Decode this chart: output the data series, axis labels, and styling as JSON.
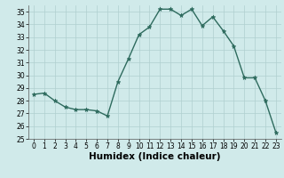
{
  "x": [
    0,
    1,
    2,
    3,
    4,
    5,
    6,
    7,
    8,
    9,
    10,
    11,
    12,
    13,
    14,
    15,
    16,
    17,
    18,
    19,
    20,
    21,
    22,
    23
  ],
  "y": [
    28.5,
    28.6,
    28.0,
    27.5,
    27.3,
    27.3,
    27.2,
    26.8,
    29.5,
    31.3,
    33.2,
    33.8,
    35.2,
    35.2,
    34.7,
    35.2,
    33.9,
    34.6,
    33.5,
    32.3,
    29.8,
    29.8,
    28.0,
    25.5
  ],
  "line_color": "#2e6b5e",
  "marker": "*",
  "marker_size": 3.5,
  "bg_color": "#d0eaea",
  "grid_color": "#b0cfcf",
  "xlabel": "Humidex (Indice chaleur)",
  "ylim": [
    25,
    35.5
  ],
  "xlim": [
    -0.5,
    23.5
  ],
  "yticks": [
    25,
    26,
    27,
    28,
    29,
    30,
    31,
    32,
    33,
    34,
    35
  ],
  "xticks": [
    0,
    1,
    2,
    3,
    4,
    5,
    6,
    7,
    8,
    9,
    10,
    11,
    12,
    13,
    14,
    15,
    16,
    17,
    18,
    19,
    20,
    21,
    22,
    23
  ],
  "tick_fontsize": 5.5,
  "xlabel_fontsize": 7.5,
  "linewidth": 1.0
}
